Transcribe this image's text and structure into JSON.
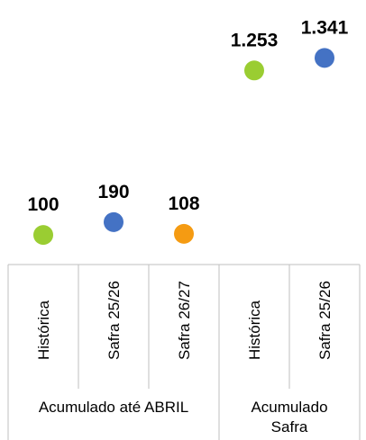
{
  "chart_data": {
    "type": "scatter",
    "title": "",
    "xlabel": "",
    "ylabel": "",
    "ylim": [
      0,
      1400
    ],
    "legend": "none",
    "grid": false,
    "groups": [
      {
        "label": "Acumulado até ABRIL",
        "categories": [
          "Histórica",
          "Safra 25/26",
          "Safra 26/27"
        ]
      },
      {
        "label": "Acumulado Safra",
        "categories": [
          "Histórica",
          "Safra 25/26"
        ]
      }
    ],
    "points": [
      {
        "category": "Histórica",
        "value": 100,
        "label": "100",
        "color": "#9acd32"
      },
      {
        "category": "Safra 25/26",
        "value": 190,
        "label": "190",
        "color": "#4472c4"
      },
      {
        "category": "Safra 26/27",
        "value": 108,
        "label": "108",
        "color": "#f59b12"
      },
      {
        "category": "Histórica",
        "value": 1253,
        "label": "1.253",
        "color": "#9acd32"
      },
      {
        "category": "Safra 25/26",
        "value": 1341,
        "label": "1.341",
        "color": "#4472c4"
      }
    ]
  }
}
